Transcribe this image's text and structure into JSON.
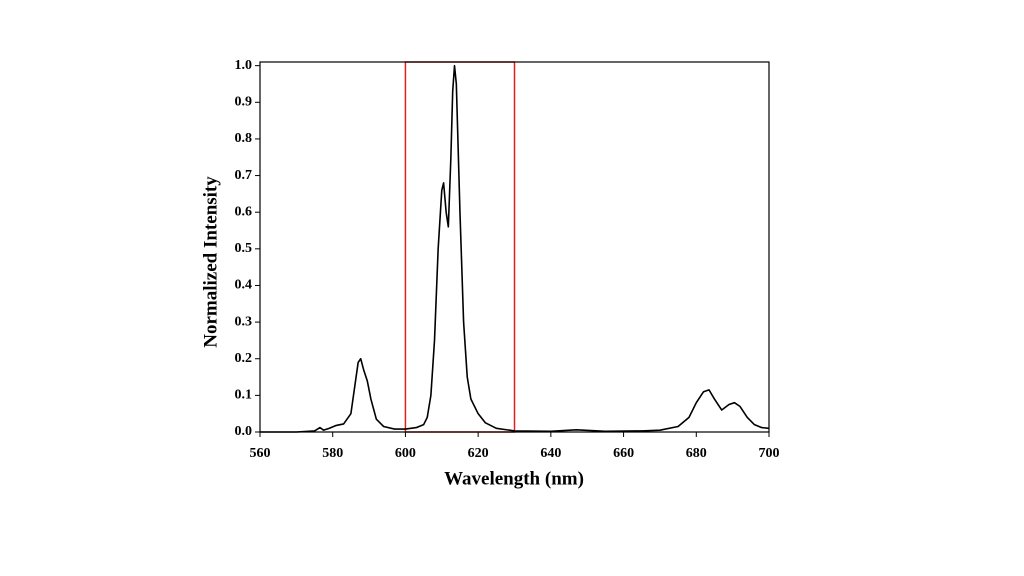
{
  "chart_data": {
    "type": "line",
    "xlabel": "Wavelength (nm)",
    "ylabel": "Normalized Intensity",
    "x": [
      560,
      570,
      575,
      576.5,
      577.5,
      579,
      581,
      583,
      585,
      586,
      587,
      587.7,
      588.5,
      589.5,
      590.5,
      592,
      594,
      597,
      600,
      603,
      605,
      606,
      607,
      608,
      609,
      610,
      610.5,
      611.2,
      611.8,
      612.5,
      613,
      613.5,
      614,
      615,
      616,
      617,
      618,
      620,
      622,
      625,
      630,
      640,
      647,
      655,
      665,
      670,
      675,
      678,
      680,
      682,
      683.5,
      685,
      687,
      689,
      690.5,
      692,
      694,
      696,
      698,
      700
    ],
    "series": [
      {
        "color": "#000000",
        "values": [
          0.0,
          0.0,
          0.003,
          0.012,
          0.005,
          0.01,
          0.018,
          0.022,
          0.05,
          0.12,
          0.19,
          0.2,
          0.17,
          0.14,
          0.09,
          0.035,
          0.015,
          0.008,
          0.008,
          0.012,
          0.02,
          0.04,
          0.1,
          0.25,
          0.5,
          0.66,
          0.68,
          0.6,
          0.56,
          0.75,
          0.93,
          1.0,
          0.95,
          0.6,
          0.3,
          0.15,
          0.09,
          0.05,
          0.025,
          0.01,
          0.003,
          0.002,
          0.006,
          0.002,
          0.003,
          0.005,
          0.015,
          0.04,
          0.08,
          0.11,
          0.115,
          0.09,
          0.06,
          0.075,
          0.08,
          0.07,
          0.04,
          0.02,
          0.012,
          0.01
        ]
      }
    ],
    "xlim": [
      560,
      700
    ],
    "xticks": [
      560,
      580,
      600,
      620,
      640,
      660,
      680,
      700
    ],
    "ylim": [
      0,
      1.01
    ],
    "yticks": [
      {
        "value": 0,
        "label": "0.0"
      },
      {
        "value": 0.1,
        "label": "0.1"
      },
      {
        "value": 0.2,
        "label": "0.2"
      },
      {
        "value": 0.3,
        "label": "0.3"
      },
      {
        "value": 0.4,
        "label": "0.4"
      },
      {
        "value": 0.5,
        "label": "0.5"
      },
      {
        "value": 0.6,
        "label": "0.6"
      },
      {
        "value": 0.7,
        "label": "0.7"
      },
      {
        "value": 0.8,
        "label": "0.8"
      },
      {
        "value": 0.9,
        "label": "0.9"
      },
      {
        "value": 1,
        "label": "1.0"
      }
    ],
    "highlight": {
      "xlim": [
        600,
        630
      ],
      "color": "#e02020"
    }
  }
}
